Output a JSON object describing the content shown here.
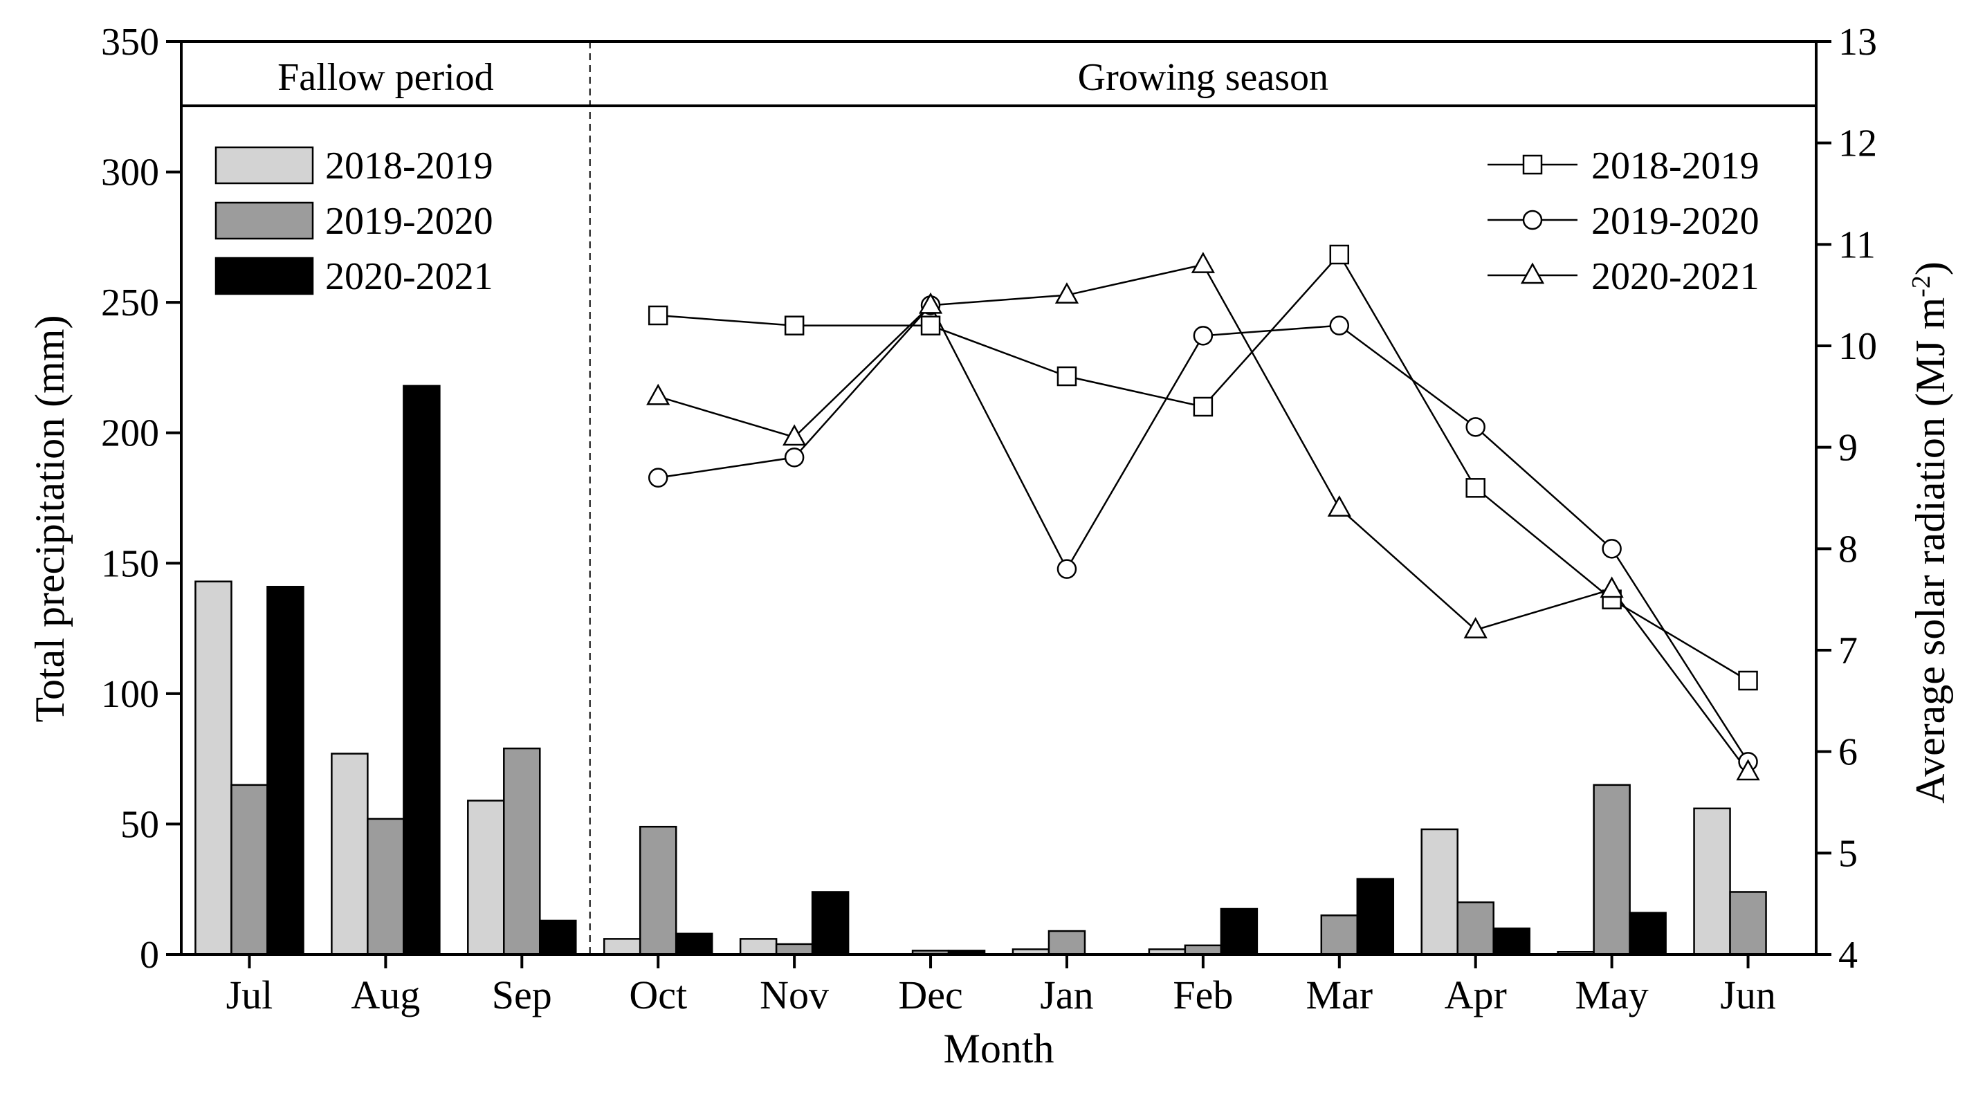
{
  "chart_data": {
    "type": "bar+line",
    "categories": [
      "Jul",
      "Aug",
      "Sep",
      "Oct",
      "Nov",
      "Dec",
      "Jan",
      "Feb",
      "Mar",
      "Apr",
      "May",
      "Jun"
    ],
    "xlabel": "Month",
    "ylabel_left": "Total precipitation (mm)",
    "ylabel_right_main": "Average solar radiation (MJ m",
    "ylabel_right_sup": "-2",
    "ylabel_right_close": ")",
    "ylim_left": [
      0,
      350
    ],
    "yticks_left": [
      0,
      50,
      100,
      150,
      200,
      250,
      300,
      350
    ],
    "ylim_right": [
      4,
      13
    ],
    "yticks_right": [
      4,
      5,
      6,
      7,
      8,
      9,
      10,
      11,
      12,
      13
    ],
    "grid": false,
    "periods": [
      {
        "label": "Fallow period",
        "months": [
          "Jul",
          "Aug",
          "Sep"
        ]
      },
      {
        "label": "Growing season",
        "months": [
          "Oct",
          "Nov",
          "Dec",
          "Jan",
          "Feb",
          "Mar",
          "Apr",
          "May",
          "Jun"
        ]
      }
    ],
    "bar_legend_placement": "top-left",
    "line_legend_placement": "top-right",
    "bar_series": [
      {
        "name": "2018-2019",
        "color": "#d3d3d3",
        "values": [
          143,
          77,
          59,
          6,
          6,
          0,
          2,
          2,
          0,
          48,
          1,
          56
        ]
      },
      {
        "name": "2019-2020",
        "color": "#9c9c9c",
        "values": [
          65,
          52,
          79,
          49,
          4,
          1.5,
          9,
          3.5,
          15,
          20,
          65,
          24
        ]
      },
      {
        "name": "2020-2021",
        "color": "#000000",
        "values": [
          141,
          218,
          13,
          8,
          24,
          1.5,
          0,
          17.5,
          29,
          10,
          16,
          0
        ]
      }
    ],
    "line_series": [
      {
        "name": "2018-2019",
        "marker": "square",
        "values": [
          null,
          null,
          null,
          10.3,
          10.2,
          10.2,
          9.7,
          9.4,
          10.9,
          8.6,
          7.5,
          6.7
        ]
      },
      {
        "name": "2019-2020",
        "marker": "circle",
        "values": [
          null,
          null,
          null,
          8.7,
          8.9,
          10.4,
          7.8,
          10.1,
          10.2,
          9.2,
          8.0,
          5.9
        ]
      },
      {
        "name": "2020-2021",
        "marker": "triangle",
        "values": [
          null,
          null,
          null,
          9.5,
          9.1,
          10.4,
          10.5,
          10.8,
          8.4,
          7.2,
          7.6,
          5.8
        ]
      }
    ]
  }
}
